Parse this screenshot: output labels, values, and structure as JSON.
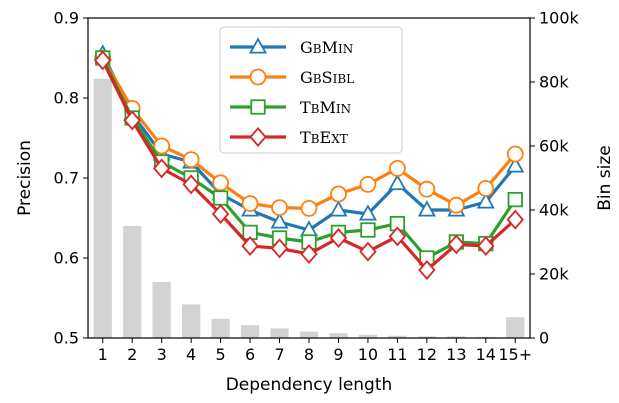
{
  "chart_data": {
    "type": "line",
    "xlabel": "Dependency length",
    "ylabel_left": "Precision",
    "ylabel_right": "Bin size",
    "categories": [
      "1",
      "2",
      "3",
      "4",
      "5",
      "6",
      "7",
      "8",
      "9",
      "10",
      "11",
      "12",
      "13",
      "14",
      "15+"
    ],
    "ylim_left": [
      0.5,
      0.9
    ],
    "yticks_left": [
      "0.5",
      "0.6",
      "0.7",
      "0.8",
      "0.9"
    ],
    "ylim_right": [
      0,
      100000
    ],
    "yticks_right": [
      "0",
      "20k",
      "40k",
      "60k",
      "80k",
      "100k"
    ],
    "legend_position": "top-center",
    "series": [
      {
        "name": "GbMin",
        "color": "#1f77b4",
        "marker": "triangle",
        "values": [
          0.855,
          0.78,
          0.73,
          0.72,
          0.68,
          0.66,
          0.645,
          0.635,
          0.66,
          0.655,
          0.693,
          0.66,
          0.66,
          0.67,
          0.715
        ]
      },
      {
        "name": "GbSibl",
        "color": "#ff7f0e",
        "marker": "circle",
        "values": [
          0.85,
          0.787,
          0.74,
          0.723,
          0.694,
          0.668,
          0.663,
          0.662,
          0.68,
          0.692,
          0.712,
          0.686,
          0.666,
          0.687,
          0.73
        ]
      },
      {
        "name": "TbMin",
        "color": "#2ca02c",
        "marker": "square",
        "values": [
          0.85,
          0.775,
          0.72,
          0.7,
          0.675,
          0.632,
          0.625,
          0.62,
          0.632,
          0.635,
          0.643,
          0.6,
          0.62,
          0.618,
          0.673
        ]
      },
      {
        "name": "TbExt",
        "color": "#d62728",
        "marker": "diamond",
        "values": [
          0.847,
          0.772,
          0.712,
          0.692,
          0.655,
          0.615,
          0.612,
          0.605,
          0.625,
          0.608,
          0.627,
          0.585,
          0.617,
          0.615,
          0.648
        ]
      }
    ],
    "bins": {
      "color": "#d3d3d3",
      "values": [
        81000,
        35000,
        17500,
        10500,
        6000,
        4000,
        3000,
        2000,
        1500,
        1000,
        700,
        500,
        500,
        300,
        6500
      ]
    }
  }
}
